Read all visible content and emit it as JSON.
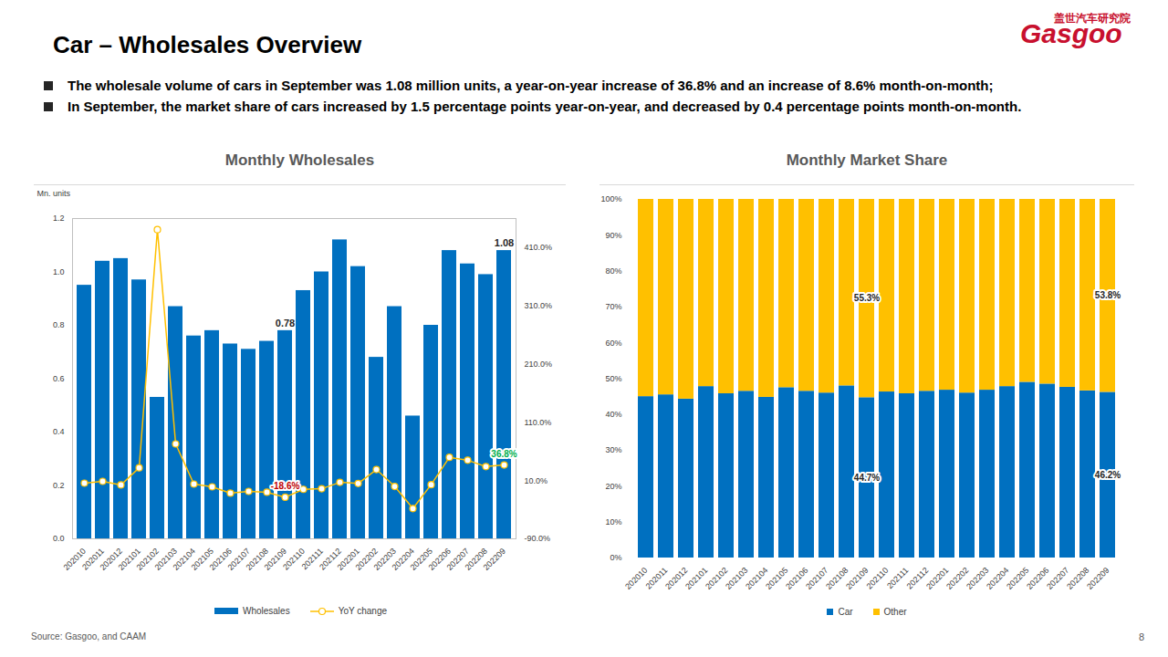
{
  "page": {
    "title": "Car – Wholesales Overview",
    "bullets": [
      "The wholesale volume of cars in September was 1.08 million units, a year-on-year increase of 36.8% and an increase of 8.6% month-on-month;",
      "In September, the market share of cars increased by 1.5 percentage points year-on-year, and decreased by 0.4 percentage points month-on-month."
    ],
    "logo": [
      "盖世汽车研究院",
      "Gasgoo"
    ],
    "source": "Source: Gasgoo, and CAAM",
    "page_number": "8"
  },
  "chart_data": [
    {
      "type": "bar",
      "title": "Monthly Wholesales",
      "y_label": "Mn. units",
      "categories": [
        "202010",
        "202011",
        "202012",
        "202101",
        "202102",
        "202103",
        "202104",
        "202105",
        "202106",
        "202107",
        "202108",
        "202109",
        "202110",
        "202111",
        "202112",
        "202201",
        "202202",
        "202203",
        "202204",
        "202205",
        "202206",
        "202207",
        "202208",
        "202209"
      ],
      "series": [
        {
          "name": "Wholesales",
          "type": "bar",
          "color": "#0070c0",
          "values": [
            0.95,
            1.04,
            1.05,
            0.97,
            0.53,
            0.87,
            0.76,
            0.78,
            0.73,
            0.71,
            0.74,
            0.78,
            0.93,
            1.0,
            1.12,
            1.02,
            0.68,
            0.87,
            0.46,
            0.8,
            1.08,
            1.03,
            0.99,
            1.08
          ],
          "value_labels": [
            null,
            null,
            null,
            null,
            null,
            null,
            null,
            null,
            null,
            null,
            null,
            "0.78",
            null,
            null,
            null,
            null,
            null,
            null,
            null,
            null,
            null,
            null,
            null,
            "1.08"
          ]
        },
        {
          "name": "YoY change",
          "type": "line",
          "axis": "y2",
          "color": "#ffc000",
          "marker": "circle",
          "line_style": "solid",
          "values": [
            5.6,
            8.7,
            2.5,
            32,
            441,
            73,
            4,
            -0.7,
            -11.6,
            -8.5,
            -10,
            -18.6,
            -5,
            -4,
            7,
            5,
            29,
            0,
            -38,
            3,
            50,
            45,
            34,
            36.8
          ],
          "value_labels": [
            null,
            null,
            null,
            null,
            null,
            null,
            null,
            null,
            null,
            null,
            null,
            "-18.6%",
            null,
            null,
            null,
            null,
            null,
            null,
            null,
            null,
            null,
            null,
            null,
            "36.8%"
          ]
        }
      ],
      "ylim": [
        0,
        1.2
      ],
      "yticks": [
        {
          "value": 0,
          "label": "0.0"
        },
        0.2,
        0.4,
        0.6,
        0.8,
        {
          "value": 1,
          "label": "1.0"
        },
        1.2
      ],
      "y2lim": [
        -90,
        460
      ],
      "y2ticks": [
        {
          "value": -90,
          "label": "-90.0%"
        },
        {
          "value": 10,
          "label": "10.0%"
        },
        {
          "value": 110,
          "label": "110.0%"
        },
        {
          "value": 210,
          "label": "210.0%"
        },
        {
          "value": 310,
          "label": "310.0%"
        },
        {
          "value": 410,
          "label": "410.0%"
        }
      ],
      "data_labels": true,
      "legend": "bottom",
      "grid": false
    },
    {
      "type": "bar",
      "title": "Monthly Market Share",
      "stacked": true,
      "categories": [
        "202010",
        "202011",
        "202012",
        "202101",
        "202102",
        "202103",
        "202104",
        "202105",
        "202106",
        "202107",
        "202108",
        "202109",
        "202110",
        "202111",
        "202112",
        "202201",
        "202202",
        "202203",
        "202204",
        "202205",
        "202206",
        "202207",
        "202208",
        "202209"
      ],
      "series": [
        {
          "name": "Car",
          "color": "#0070c0",
          "values": [
            45.0,
            45.5,
            44.3,
            47.8,
            45.8,
            46.5,
            44.8,
            47.5,
            46.5,
            46.0,
            48.0,
            44.7,
            46.3,
            45.8,
            46.5,
            46.8,
            46.0,
            46.8,
            47.8,
            49.0,
            48.5,
            47.6,
            46.6,
            46.2
          ],
          "value_labels": [
            null,
            null,
            null,
            null,
            null,
            null,
            null,
            null,
            null,
            null,
            null,
            "44.7%",
            null,
            null,
            null,
            null,
            null,
            null,
            null,
            null,
            null,
            null,
            null,
            "46.2%"
          ]
        },
        {
          "name": "Other",
          "color": "#ffc000",
          "values": [
            55.0,
            54.5,
            55.7,
            52.2,
            54.2,
            53.5,
            55.2,
            52.5,
            53.5,
            54.0,
            52.0,
            55.3,
            53.7,
            54.2,
            53.5,
            53.2,
            54.0,
            53.2,
            52.2,
            51.0,
            51.5,
            52.4,
            53.4,
            53.8
          ],
          "value_labels": [
            null,
            null,
            null,
            null,
            null,
            null,
            null,
            null,
            null,
            null,
            null,
            "55.3%",
            null,
            null,
            null,
            null,
            null,
            null,
            null,
            null,
            null,
            null,
            null,
            "53.8%"
          ]
        }
      ],
      "ylim": [
        0,
        100
      ],
      "yticks": [
        {
          "value": 0,
          "label": "0%"
        },
        {
          "value": 10,
          "label": "10%"
        },
        {
          "value": 20,
          "label": "20%"
        },
        {
          "value": 30,
          "label": "30%"
        },
        {
          "value": 40,
          "label": "40%"
        },
        {
          "value": 50,
          "label": "50%"
        },
        {
          "value": 60,
          "label": "60%"
        },
        {
          "value": 70,
          "label": "70%"
        },
        {
          "value": 80,
          "label": "80%"
        },
        {
          "value": 90,
          "label": "90%"
        },
        {
          "value": 100,
          "label": "100%"
        }
      ],
      "data_labels": true,
      "legend": "bottom",
      "grid": false
    }
  ]
}
